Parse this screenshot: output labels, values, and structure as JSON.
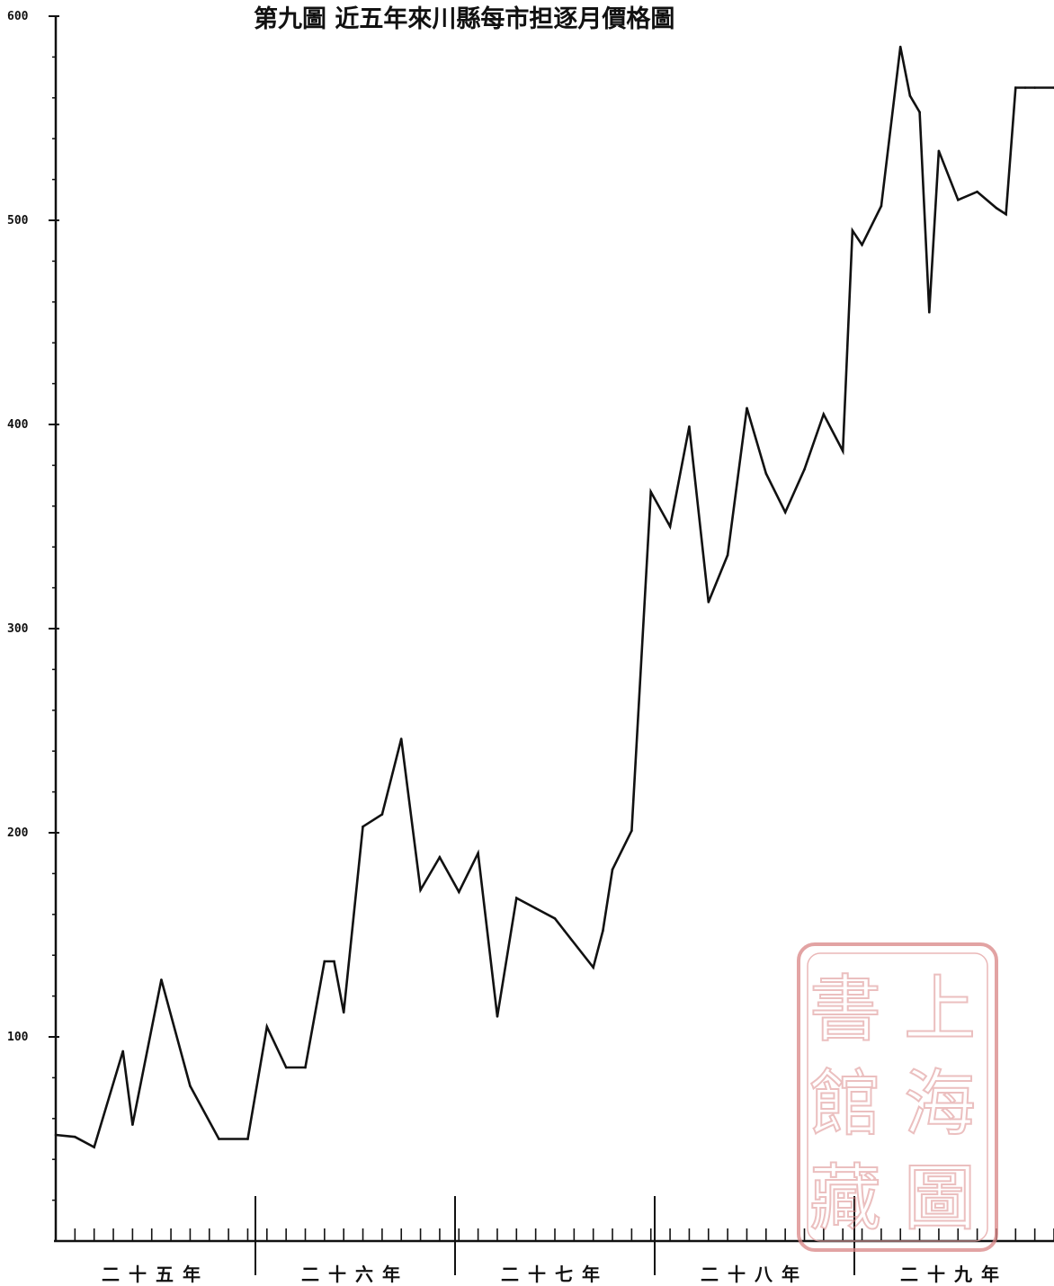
{
  "chart_data": {
    "type": "line",
    "title": "第九圖 近五年來川縣每市担逐月價格圖",
    "ylim": [
      0,
      600
    ],
    "yticks": [
      100,
      200,
      300,
      400,
      500,
      600
    ],
    "ytick_labels": [
      "100",
      "200",
      "300",
      "400",
      "500",
      "600"
    ],
    "x_groups": [
      "二十五年",
      "二十六年",
      "二十七年",
      "二十八年",
      "二十九年"
    ],
    "x_index_range": [
      0,
      52
    ],
    "series": [
      {
        "x": [
          0,
          1,
          2,
          3.5,
          4,
          5.5,
          7,
          8.5,
          10,
          11,
          12,
          13,
          14,
          14.5,
          15,
          16,
          17,
          18,
          19,
          20,
          21,
          22,
          23,
          24,
          25,
          26,
          26.5,
          28,
          28.5,
          29,
          30,
          31,
          32,
          33,
          34,
          35,
          36,
          37,
          38,
          39,
          40,
          41,
          41.5,
          42,
          43,
          44,
          44.5,
          45,
          45.5,
          46,
          47,
          48,
          49,
          49.5,
          50,
          50.5,
          51,
          52,
          53
        ],
        "values": [
          52,
          51,
          46,
          93,
          57,
          128,
          76,
          50,
          50,
          105,
          85,
          85,
          137,
          137,
          112,
          203,
          209,
          246,
          172,
          188,
          171,
          190,
          110,
          168,
          163,
          158,
          152,
          134,
          152,
          182,
          201,
          367,
          350,
          399,
          313,
          336,
          408,
          376,
          357,
          378,
          405,
          387,
          495,
          488,
          507,
          585,
          561,
          553,
          455,
          534,
          510,
          514,
          506,
          503,
          565,
          565,
          565,
          565,
          565
        ]
      }
    ]
  },
  "seal": {
    "text": "上海圖書館藏",
    "color": "#d98585"
  }
}
